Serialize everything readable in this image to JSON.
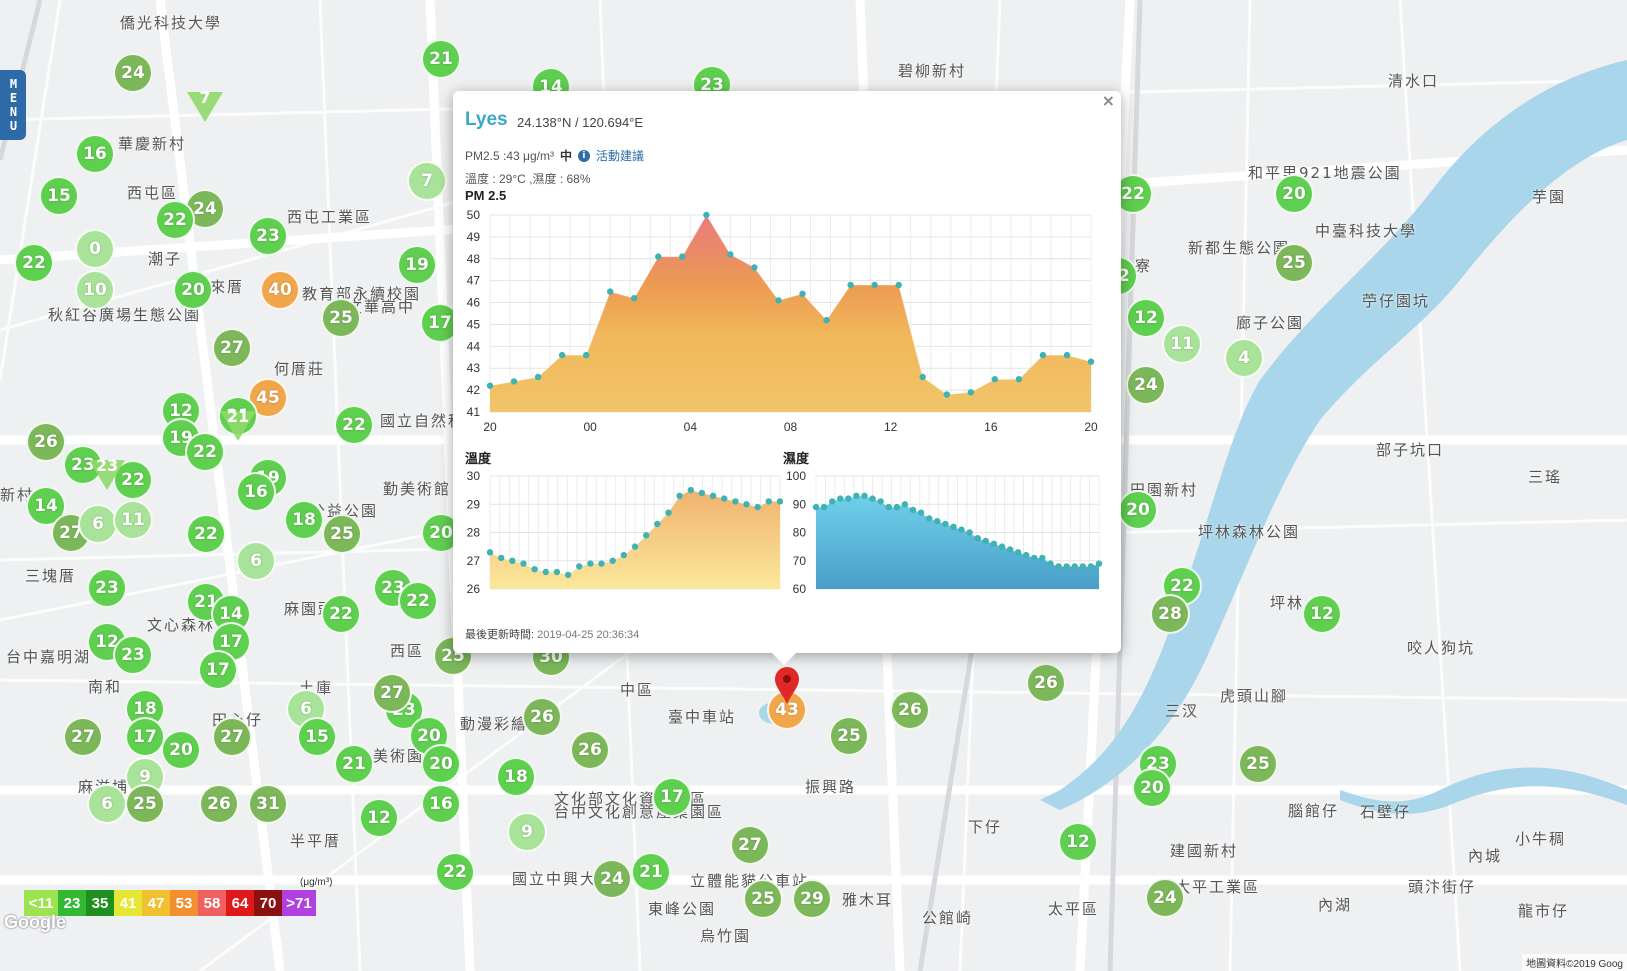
{
  "menu": {
    "label": "MENU"
  },
  "colors": {
    "g1": "#5fcf4f",
    "g2": "#7cb85a",
    "g3": "#a9e39a",
    "yellow": "#f3d14a",
    "orange": "#f0a64a",
    "accent": "#3aa8c7"
  },
  "map": {
    "labels": [
      {
        "text": "僑光科技大學"
      },
      {
        "text": "華慶新村"
      },
      {
        "text": "西屯區"
      },
      {
        "text": "西屯工業區"
      },
      {
        "text": "潮子"
      },
      {
        "text": "惠來厝"
      },
      {
        "text": "何厝莊"
      },
      {
        "text": "國立自然科"
      },
      {
        "text": "教育部永續校園"
      },
      {
        "text": "市文華高中"
      },
      {
        "text": "秋紅谷廣場生態公園"
      },
      {
        "text": "勤美術館"
      },
      {
        "text": "公益公園"
      },
      {
        "text": "新村"
      },
      {
        "text": "三塊厝"
      },
      {
        "text": "文心森林"
      },
      {
        "text": "台中嘉明湖"
      },
      {
        "text": "麻園頭"
      },
      {
        "text": "西區"
      },
      {
        "text": "土庫"
      },
      {
        "text": "南和"
      },
      {
        "text": "田心仔"
      },
      {
        "text": "美術園"
      },
      {
        "text": "半平厝"
      },
      {
        "text": "麻滋埔"
      },
      {
        "text": "中區"
      },
      {
        "text": "臺中車站"
      },
      {
        "text": "動漫彩繪巷"
      },
      {
        "text": "振興路"
      },
      {
        "text": "文化部文化資產園區"
      },
      {
        "text": "台中文化創意產業園區"
      },
      {
        "text": "國立中興大學"
      },
      {
        "text": "立體能貓公車站"
      },
      {
        "text": "東峰公園"
      },
      {
        "text": "雅木耳"
      },
      {
        "text": "公館崎"
      },
      {
        "text": "太平區"
      },
      {
        "text": "下仔"
      },
      {
        "text": "建國新村"
      },
      {
        "text": "太平工業區"
      },
      {
        "text": "內湖"
      },
      {
        "text": "頭汴街仔"
      },
      {
        "text": "石壁仔"
      },
      {
        "text": "內城"
      },
      {
        "text": "小牛稠"
      },
      {
        "text": "龍市仔"
      },
      {
        "text": "腦館仔"
      },
      {
        "text": "虎頭山腳"
      },
      {
        "text": "三汊"
      },
      {
        "text": "咬人狗坑"
      },
      {
        "text": "坪林"
      },
      {
        "text": "三瑤"
      },
      {
        "text": "部子坑口"
      },
      {
        "text": "田園新村"
      },
      {
        "text": "坪林森林公園"
      },
      {
        "text": "苧仔園坑"
      },
      {
        "text": "新都生態公園"
      },
      {
        "text": "廊子公園"
      },
      {
        "text": "中臺科技大學"
      },
      {
        "text": "芋園"
      },
      {
        "text": "和平里921地震公園"
      },
      {
        "text": "清水口"
      },
      {
        "text": "碧柳新村"
      },
      {
        "text": "功寮"
      },
      {
        "text": "烏竹園"
      }
    ],
    "markers": [
      {
        "v": "24"
      },
      {
        "v": "21"
      },
      {
        "v": "14"
      },
      {
        "v": "23"
      },
      {
        "v": "16"
      },
      {
        "v": "15"
      },
      {
        "v": "24"
      },
      {
        "v": "22"
      },
      {
        "v": "23"
      },
      {
        "v": "22"
      },
      {
        "v": "0"
      },
      {
        "v": "10"
      },
      {
        "v": "20"
      },
      {
        "v": "40"
      },
      {
        "v": "19"
      },
      {
        "v": "25"
      },
      {
        "v": "17"
      },
      {
        "v": "27"
      },
      {
        "v": "45"
      },
      {
        "v": "12"
      },
      {
        "v": "21"
      },
      {
        "v": "19"
      },
      {
        "v": "22"
      },
      {
        "v": "22"
      },
      {
        "v": "26"
      },
      {
        "v": "23"
      },
      {
        "v": "22"
      },
      {
        "v": "19"
      },
      {
        "v": "16"
      },
      {
        "v": "14"
      },
      {
        "v": "27"
      },
      {
        "v": "6"
      },
      {
        "v": "11"
      },
      {
        "v": "22"
      },
      {
        "v": "18"
      },
      {
        "v": "25"
      },
      {
        "v": "20"
      },
      {
        "v": "6"
      },
      {
        "v": "23"
      },
      {
        "v": "22"
      },
      {
        "v": "23"
      },
      {
        "v": "21"
      },
      {
        "v": "14"
      },
      {
        "v": "22"
      },
      {
        "v": "12"
      },
      {
        "v": "23"
      },
      {
        "v": "17"
      },
      {
        "v": "17"
      },
      {
        "v": "18"
      },
      {
        "v": "27"
      },
      {
        "v": "17"
      },
      {
        "v": "6"
      },
      {
        "v": "24"
      },
      {
        "v": "23"
      },
      {
        "v": "15"
      },
      {
        "v": "27"
      },
      {
        "v": "20"
      },
      {
        "v": "21"
      },
      {
        "v": "20"
      },
      {
        "v": "20"
      },
      {
        "v": "9"
      },
      {
        "v": "6"
      },
      {
        "v": "25"
      },
      {
        "v": "26"
      },
      {
        "v": "31"
      },
      {
        "v": "12"
      },
      {
        "v": "16"
      },
      {
        "v": "18"
      },
      {
        "v": "9"
      },
      {
        "v": "26"
      },
      {
        "v": "26"
      },
      {
        "v": "17"
      },
      {
        "v": "27"
      },
      {
        "v": "22"
      },
      {
        "v": "24"
      },
      {
        "v": "21"
      },
      {
        "v": "25"
      },
      {
        "v": "29"
      },
      {
        "v": "25"
      },
      {
        "v": "26"
      },
      {
        "v": "26"
      },
      {
        "v": "43"
      },
      {
        "v": "22"
      },
      {
        "v": "20"
      },
      {
        "v": "25"
      },
      {
        "v": "12"
      },
      {
        "v": "11"
      },
      {
        "v": "4"
      },
      {
        "v": "24"
      },
      {
        "v": "22"
      },
      {
        "v": "28"
      },
      {
        "v": "12"
      },
      {
        "v": "23"
      },
      {
        "v": "20"
      },
      {
        "v": "25"
      },
      {
        "v": "12"
      },
      {
        "v": "24"
      },
      {
        "v": "7"
      },
      {
        "v": "25"
      },
      {
        "v": "27"
      },
      {
        "v": "30"
      },
      {
        "v": "22"
      },
      {
        "v": "20"
      }
    ],
    "triangles": [
      {
        "v": "7"
      },
      {
        "v": "21"
      },
      {
        "v": "23"
      }
    ],
    "copyright": "地圖資料©2019 Goog",
    "google": "Google"
  },
  "popup": {
    "station": "Lyes",
    "coords": "24.138°N / 120.694°E",
    "pm_text": "PM2.5 :43 μg/m³",
    "pm_level": "中",
    "info_icon": "i",
    "advice": "活動建議",
    "temp_humidity": "溫度 : 29°C ,濕度 : 68%",
    "pm_title": "PM 2.5",
    "temp_title": "溫度",
    "hum_title": "濕度",
    "updated_label": "最後更新時間:",
    "updated_value": "2019-04-25 20:36:34",
    "close": "×"
  },
  "legend": {
    "unit": "(μg/m³)",
    "items": [
      {
        "label": "<11",
        "color": "#9be34f"
      },
      {
        "label": "23",
        "color": "#33b833"
      },
      {
        "label": "35",
        "color": "#1f8f1f"
      },
      {
        "label": "41",
        "color": "#e6e635"
      },
      {
        "label": "47",
        "color": "#f0c030"
      },
      {
        "label": "53",
        "color": "#f09030"
      },
      {
        "label": "58",
        "color": "#f06060"
      },
      {
        "label": "64",
        "color": "#e01818"
      },
      {
        "label": "70",
        "color": "#8b1010"
      },
      {
        "label": ">71",
        "color": "#b040e0"
      }
    ]
  },
  "chart_data": [
    {
      "type": "area",
      "title": "PM 2.5",
      "x_ticks": [
        "20",
        "00",
        "04",
        "08",
        "12",
        "16",
        "20"
      ],
      "ylim": [
        41,
        50
      ],
      "y_ticks": [
        41,
        42,
        43,
        44,
        45,
        46,
        47,
        48,
        49,
        50
      ],
      "series": [
        {
          "values": [
            42.2,
            42.4,
            42.6,
            43.6,
            43.6,
            46.5,
            46.2,
            48.1,
            48.1,
            50,
            48.2,
            47.6,
            46.1,
            46.4,
            45.2,
            46.8,
            46.8,
            46.8,
            42.6,
            41.8,
            41.9,
            42.5,
            42.5,
            43.6,
            43.6,
            43.3
          ]
        }
      ]
    },
    {
      "type": "area",
      "title": "溫度",
      "ylim": [
        26,
        30
      ],
      "y_ticks": [
        26,
        27,
        28,
        29,
        30
      ],
      "series": [
        {
          "values": [
            27.3,
            27.1,
            27.0,
            26.9,
            26.7,
            26.6,
            26.6,
            26.5,
            26.8,
            26.9,
            26.9,
            27.0,
            27.2,
            27.5,
            27.9,
            28.3,
            28.7,
            29.3,
            29.5,
            29.4,
            29.3,
            29.2,
            29.1,
            29.0,
            28.9,
            29.1,
            29.1
          ]
        }
      ]
    },
    {
      "type": "area",
      "title": "濕度",
      "ylim": [
        60,
        100
      ],
      "y_ticks": [
        60,
        70,
        80,
        90,
        100
      ],
      "series": [
        {
          "values": [
            89,
            89,
            91,
            92,
            92,
            93,
            93,
            92,
            91,
            89,
            89,
            90,
            88,
            87,
            85,
            84,
            83,
            82,
            81,
            80,
            78,
            77,
            76,
            75,
            74,
            73,
            72,
            71,
            71,
            69,
            68,
            68,
            68,
            68,
            68,
            69
          ]
        }
      ]
    }
  ]
}
